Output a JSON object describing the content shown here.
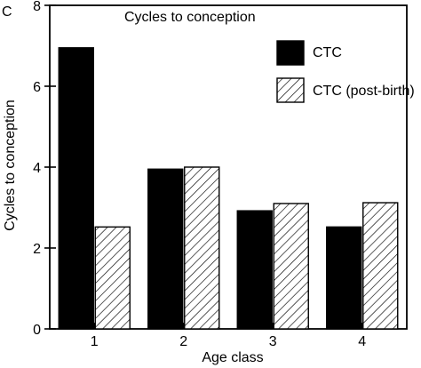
{
  "panel_label": "C",
  "chart_data": {
    "type": "bar",
    "title": "Cycles to conception",
    "xlabel": "Age class",
    "ylabel": "Cycles to conception",
    "categories": [
      "1",
      "2",
      "3",
      "4"
    ],
    "ylim": [
      0,
      8
    ],
    "yticks": [
      "0",
      "2",
      "4",
      "6",
      "8"
    ],
    "grid": false,
    "legend_position": "top-right",
    "series": [
      {
        "name": "CTC",
        "fill": "solid",
        "color": "#000000",
        "values": [
          6.95,
          3.95,
          2.92,
          2.52
        ]
      },
      {
        "name": "CTC (post-birth)",
        "fill": "hatched",
        "color": "#000000",
        "values": [
          2.52,
          4.0,
          3.1,
          3.12
        ]
      }
    ]
  }
}
